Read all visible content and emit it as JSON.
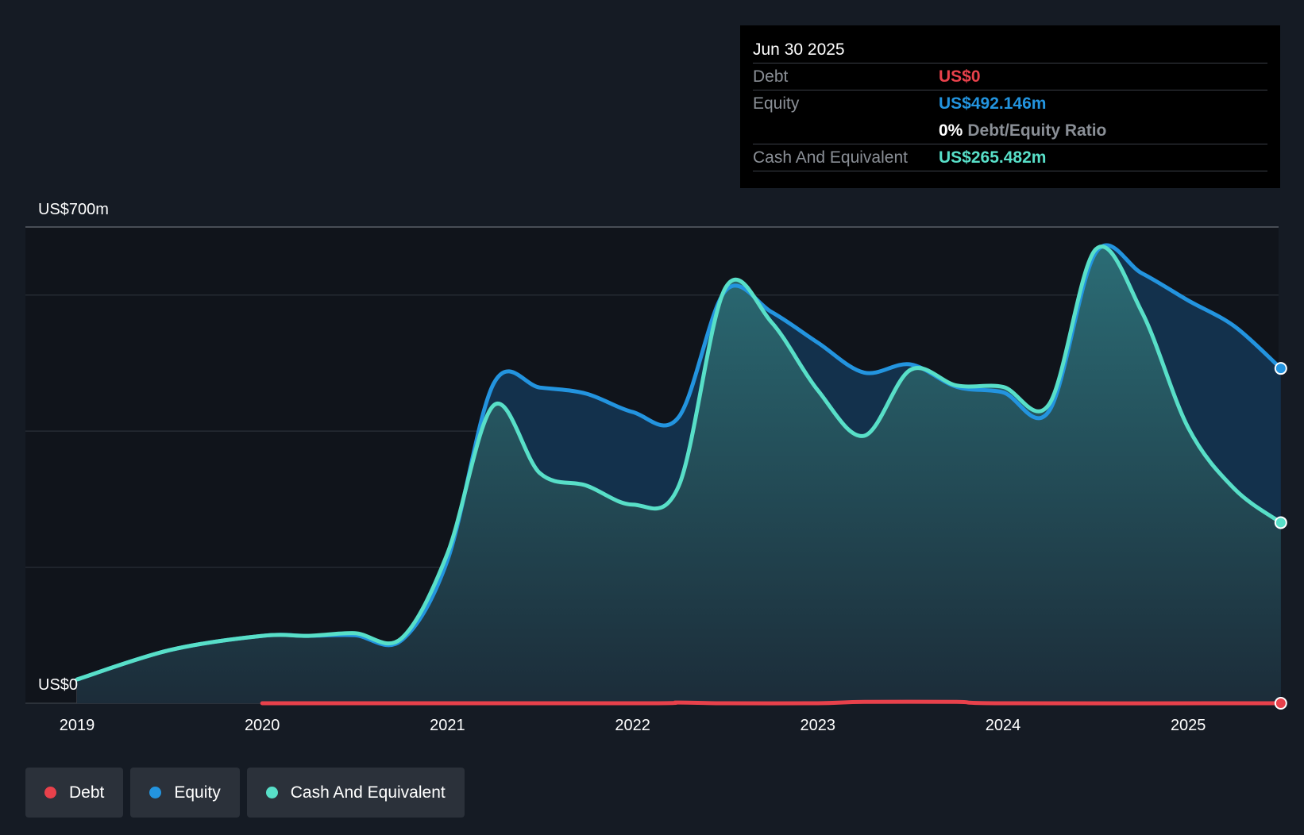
{
  "colors": {
    "debt": "#e8414b",
    "equity": "#2394df",
    "cash": "#58dfc8",
    "background": "#151b24",
    "plot_background": "#10141b"
  },
  "tooltip": {
    "date": "Jun 30 2025",
    "debt_label": "Debt",
    "debt_value": "US$0",
    "equity_label": "Equity",
    "equity_value": "US$492.146m",
    "ratio_value": "0%",
    "ratio_label": "Debt/Equity Ratio",
    "cash_label": "Cash And Equivalent",
    "cash_value": "US$265.482m"
  },
  "legend": {
    "debt": "Debt",
    "equity": "Equity",
    "cash": "Cash And Equivalent"
  },
  "chart_data": {
    "type": "area",
    "title": "",
    "xlabel": "",
    "ylabel": "",
    "ylim": [
      0,
      700
    ],
    "xlim": [
      2019.0,
      2025.5
    ],
    "y_tick_labels": {
      "top": "US$700m",
      "bottom": "US$0"
    },
    "gridlines": [
      0,
      200,
      400,
      600,
      700
    ],
    "x_ticks": [
      2019,
      2020,
      2021,
      2022,
      2023,
      2024,
      2025
    ],
    "x_tick_labels": [
      "2019",
      "2020",
      "2021",
      "2022",
      "2023",
      "2024",
      "2025"
    ],
    "series": [
      {
        "name": "Debt",
        "points": [
          [
            2020.0,
            0
          ],
          [
            2022.0,
            0
          ],
          [
            2022.25,
            1
          ],
          [
            2022.5,
            0
          ],
          [
            2023.0,
            0
          ],
          [
            2023.25,
            2
          ],
          [
            2023.75,
            2
          ],
          [
            2024.0,
            0
          ],
          [
            2025.5,
            0
          ]
        ]
      },
      {
        "name": "Equity",
        "points": [
          [
            2019.0,
            35
          ],
          [
            2019.5,
            78
          ],
          [
            2020.0,
            99
          ],
          [
            2020.25,
            99
          ],
          [
            2020.5,
            100
          ],
          [
            2020.75,
            92
          ],
          [
            2021.0,
            210
          ],
          [
            2021.25,
            470
          ],
          [
            2021.5,
            464
          ],
          [
            2021.75,
            455
          ],
          [
            2022.0,
            428
          ],
          [
            2022.25,
            421
          ],
          [
            2022.5,
            606
          ],
          [
            2022.75,
            575
          ],
          [
            2023.0,
            530
          ],
          [
            2023.25,
            486
          ],
          [
            2023.5,
            498
          ],
          [
            2023.75,
            465
          ],
          [
            2024.0,
            457
          ],
          [
            2024.25,
            430
          ],
          [
            2024.5,
            662
          ],
          [
            2024.75,
            632
          ],
          [
            2025.0,
            592
          ],
          [
            2025.25,
            554
          ],
          [
            2025.5,
            492.146
          ]
        ]
      },
      {
        "name": "Cash And Equivalent",
        "points": [
          [
            2019.0,
            35
          ],
          [
            2019.5,
            78
          ],
          [
            2020.0,
            99
          ],
          [
            2020.25,
            99
          ],
          [
            2020.5,
            103
          ],
          [
            2020.75,
            95
          ],
          [
            2021.0,
            220
          ],
          [
            2021.25,
            438
          ],
          [
            2021.5,
            338
          ],
          [
            2021.75,
            320
          ],
          [
            2022.0,
            292
          ],
          [
            2022.25,
            320
          ],
          [
            2022.5,
            610
          ],
          [
            2022.75,
            560
          ],
          [
            2023.0,
            460
          ],
          [
            2023.25,
            393
          ],
          [
            2023.5,
            490
          ],
          [
            2023.75,
            467
          ],
          [
            2024.0,
            465
          ],
          [
            2024.25,
            440
          ],
          [
            2024.5,
            667
          ],
          [
            2024.75,
            575
          ],
          [
            2025.0,
            405
          ],
          [
            2025.25,
            315
          ],
          [
            2025.5,
            265.482
          ]
        ]
      }
    ]
  }
}
